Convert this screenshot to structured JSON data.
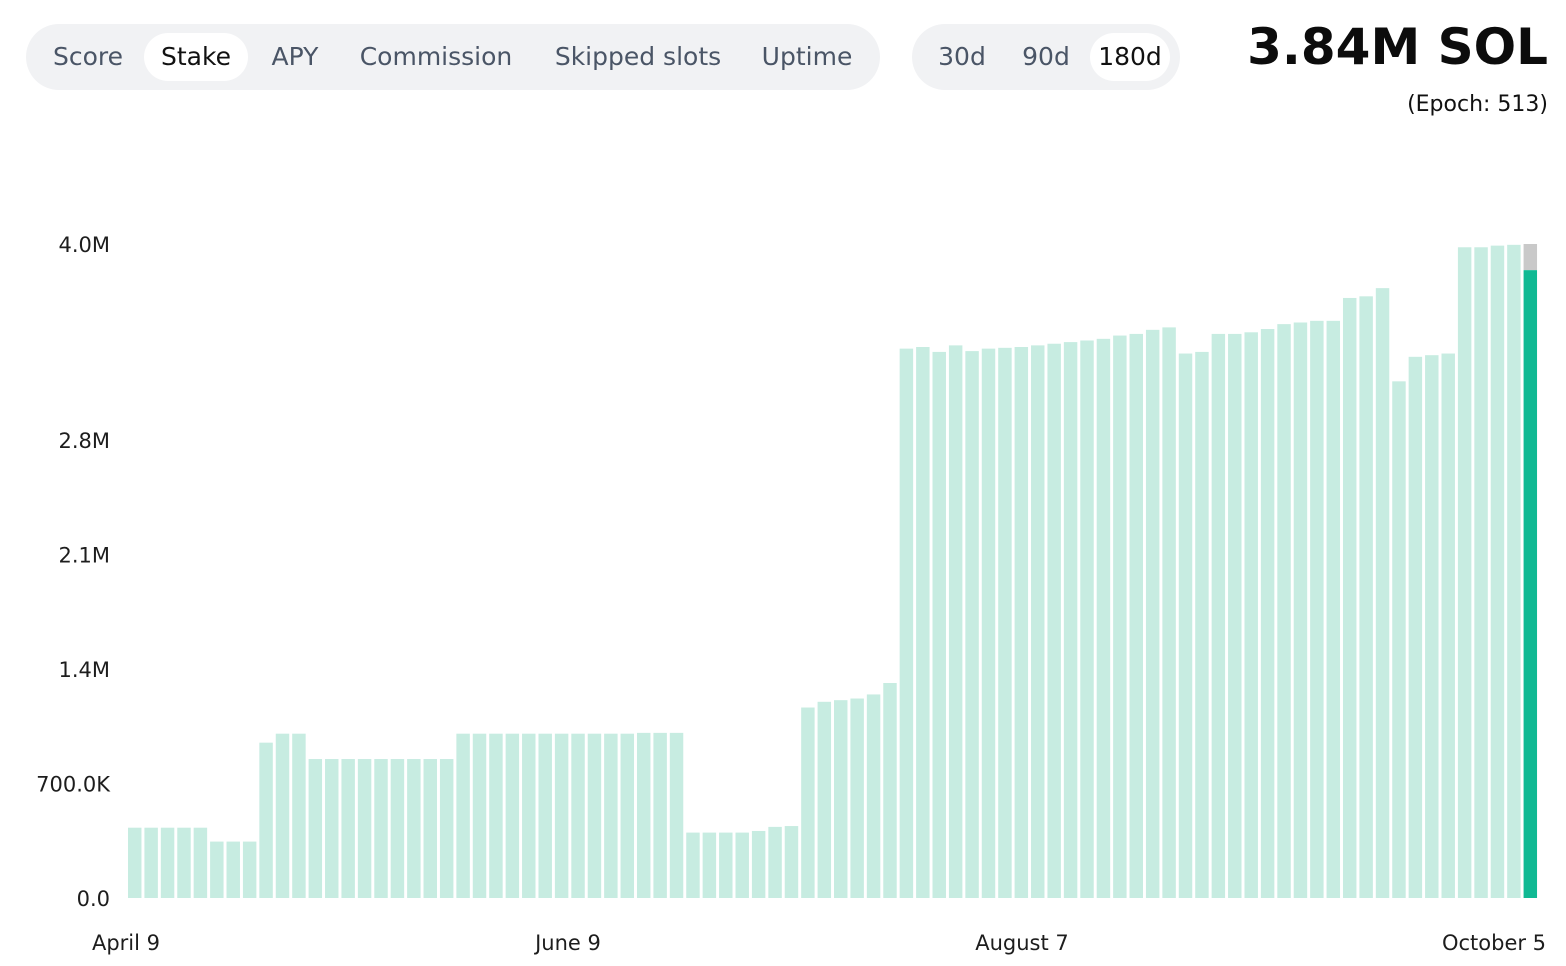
{
  "metric_tabs": [
    {
      "label": "Score",
      "active": false
    },
    {
      "label": "Stake",
      "active": true
    },
    {
      "label": "APY",
      "active": false
    },
    {
      "label": "Commission",
      "active": false
    },
    {
      "label": "Skipped slots",
      "active": false
    },
    {
      "label": "Uptime",
      "active": false
    }
  ],
  "range_tabs": [
    {
      "label": "30d",
      "active": false
    },
    {
      "label": "90d",
      "active": false
    },
    {
      "label": "180d",
      "active": true
    }
  ],
  "summary": {
    "value": "3.84M SOL",
    "epoch": "(Epoch: 513)"
  },
  "colors": {
    "bar": "#c7ece1",
    "bar_current": "#10b993",
    "bar_current_top": "#c9c9c9",
    "tab_bg": "#f1f2f4"
  },
  "chart_data": {
    "type": "bar",
    "title": "",
    "xlabel": "",
    "ylabel": "",
    "ylim": [
      0,
      4000000
    ],
    "y_ticks": [
      {
        "value": 0,
        "label": "0.0"
      },
      {
        "value": 700000,
        "label": "700.0K"
      },
      {
        "value": 1400000,
        "label": "1.4M"
      },
      {
        "value": 2100000,
        "label": "2.1M"
      },
      {
        "value": 2800000,
        "label": "2.8M"
      },
      {
        "value": 4000000,
        "label": "4.0M"
      }
    ],
    "x_tick_labels": [
      "April 9",
      "June 9",
      "August 7",
      "October 5"
    ],
    "grid": false,
    "values": [
      430000,
      430000,
      430000,
      430000,
      430000,
      345000,
      345000,
      345000,
      950000,
      1005000,
      1005000,
      850000,
      850000,
      850000,
      850000,
      850000,
      850000,
      850000,
      850000,
      850000,
      1005000,
      1005000,
      1005000,
      1005000,
      1005000,
      1005000,
      1005000,
      1005000,
      1005000,
      1005000,
      1005000,
      1010000,
      1010000,
      1010000,
      400000,
      400000,
      400000,
      400000,
      410000,
      435000,
      440000,
      1165000,
      1200000,
      1210000,
      1220000,
      1245000,
      1315000,
      3360000,
      3370000,
      3340000,
      3380000,
      3345000,
      3360000,
      3365000,
      3370000,
      3380000,
      3390000,
      3400000,
      3410000,
      3420000,
      3440000,
      3450000,
      3475000,
      3490000,
      3330000,
      3340000,
      3450000,
      3450000,
      3460000,
      3480000,
      3510000,
      3520000,
      3530000,
      3530000,
      3670000,
      3680000,
      3730000,
      3160000,
      3310000,
      3320000,
      3330000,
      3980000,
      3980000,
      3990000,
      3995000
    ],
    "current_bar": {
      "value": 3840000,
      "label": "3.84M SOL"
    }
  }
}
